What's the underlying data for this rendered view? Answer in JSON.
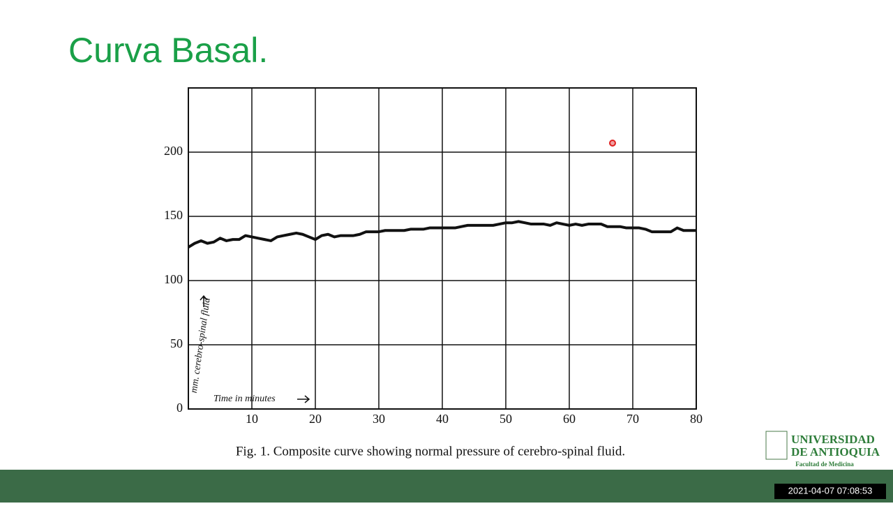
{
  "slide_title": "Curva Basal.",
  "chart_data": {
    "type": "line",
    "caption": "Fig. 1. Composite curve showing normal pressure of cerebro-spinal fluid.",
    "y_label": "mm. cerebro-spinal fluid",
    "x_label": "Time in minutes",
    "x": [
      0,
      1,
      2,
      3,
      4,
      5,
      6,
      7,
      8,
      9,
      10,
      11,
      12,
      13,
      14,
      15,
      16,
      17,
      18,
      19,
      20,
      21,
      22,
      23,
      24,
      25,
      26,
      27,
      28,
      29,
      30,
      31,
      32,
      33,
      34,
      35,
      36,
      37,
      38,
      39,
      40,
      41,
      42,
      43,
      44,
      45,
      46,
      47,
      48,
      49,
      50,
      51,
      52,
      53,
      54,
      55,
      56,
      57,
      58,
      59,
      60,
      61,
      62,
      63,
      64,
      65,
      66,
      67,
      68,
      69,
      70,
      71,
      72,
      73,
      74,
      75,
      76,
      77,
      78,
      79,
      80
    ],
    "series": [
      {
        "color": "#111111",
        "values": [
          126,
          129,
          131,
          129,
          130,
          133,
          131,
          132,
          132,
          135,
          134,
          133,
          132,
          131,
          134,
          135,
          136,
          137,
          136,
          134,
          132,
          135,
          136,
          134,
          135,
          135,
          135,
          136,
          138,
          138,
          138,
          139,
          139,
          139,
          139,
          140,
          140,
          140,
          141,
          141,
          141,
          141,
          141,
          142,
          143,
          143,
          143,
          143,
          143,
          144,
          145,
          145,
          146,
          145,
          144,
          144,
          144,
          143,
          145,
          144,
          143,
          144,
          143,
          144,
          144,
          144,
          142,
          142,
          142,
          141,
          141,
          141,
          140,
          138,
          138,
          138,
          138,
          141,
          139,
          139,
          139
        ]
      }
    ],
    "xlim": [
      0,
      80
    ],
    "xticks": [
      10,
      20,
      30,
      40,
      50,
      60,
      70,
      80
    ],
    "ylim": [
      0,
      250
    ],
    "yticks": [
      0,
      50,
      100,
      150,
      200
    ],
    "grid": true
  },
  "logo": {
    "name_line1": "UNIVERSIDAD",
    "name_line2": "DE ANTIOQUIA",
    "faculty": "Facultad de Medicina"
  },
  "timestamp": "2021-04-07 07:08:53"
}
